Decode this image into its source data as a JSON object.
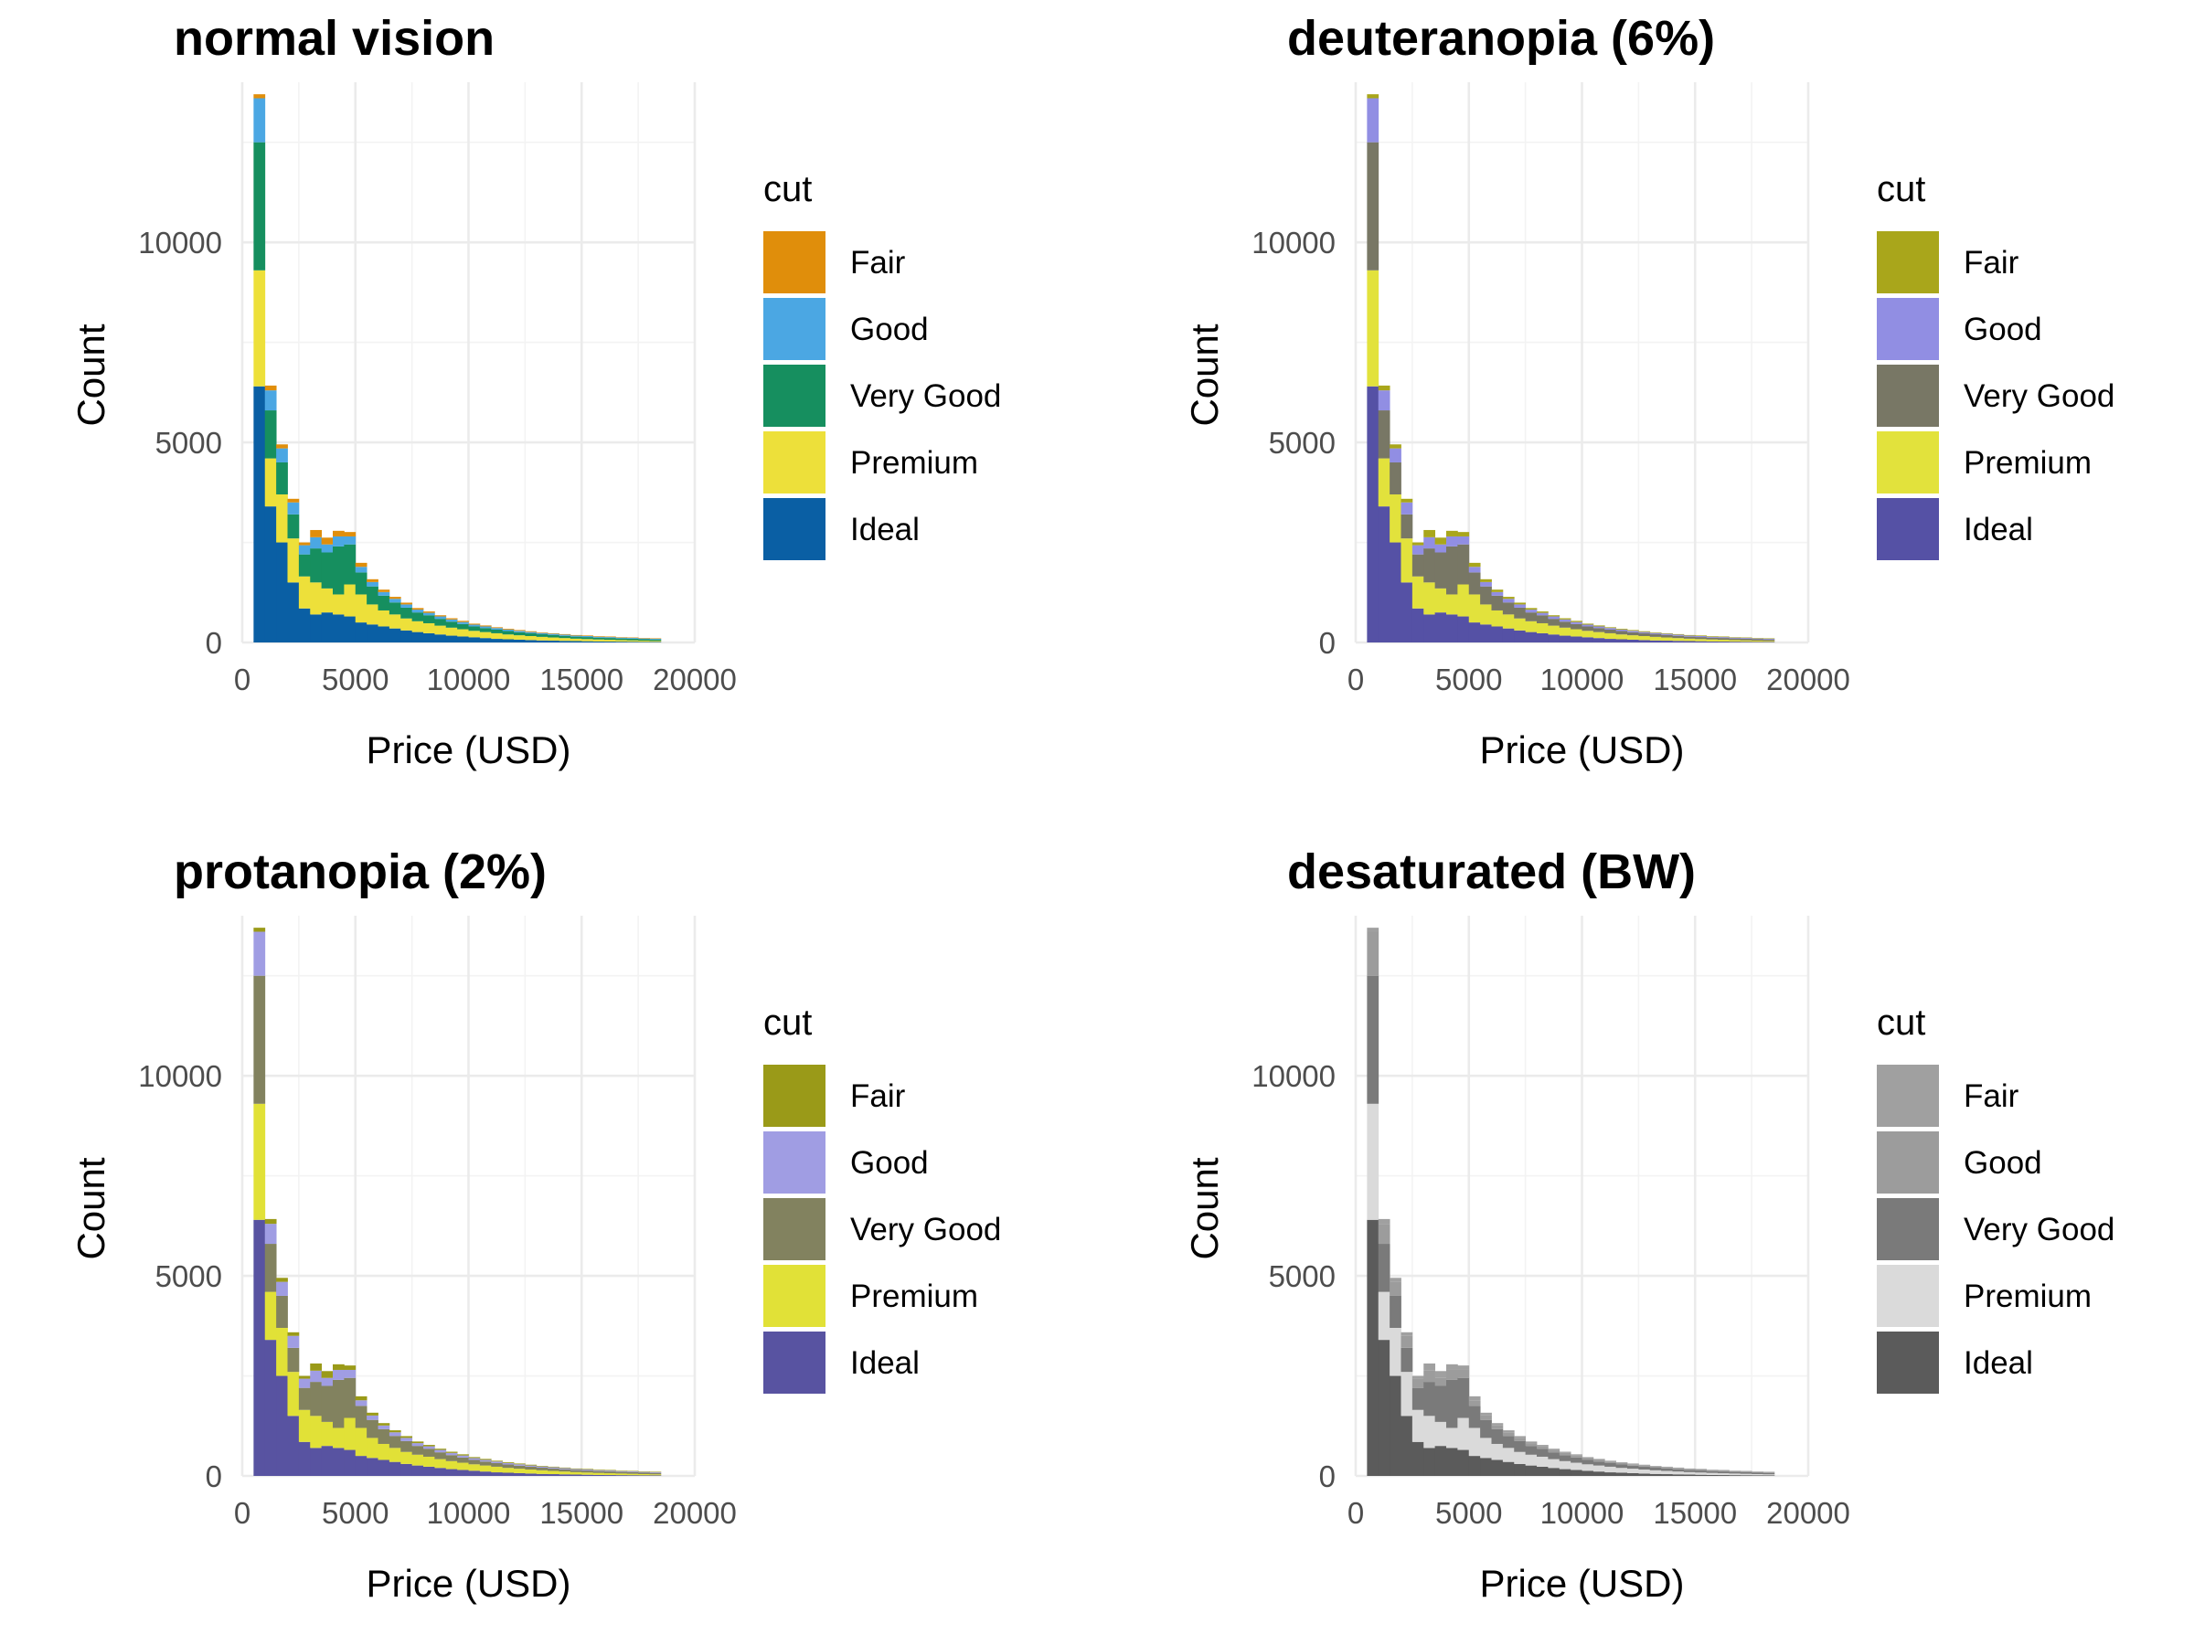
{
  "chart_data": [
    {
      "type": "bar",
      "subtype": "stacked-histogram",
      "title": "normal vision",
      "xlabel": "Price (USD)",
      "ylabel": "Count",
      "legend_title": "cut",
      "legend_position": "right",
      "grid": true,
      "xlim": [
        0,
        20000
      ],
      "ylim": [
        0,
        14000
      ],
      "x_ticks": [
        0,
        5000,
        10000,
        15000,
        20000
      ],
      "y_ticks": [
        0,
        5000,
        10000
      ],
      "binwidth": 500,
      "bins_start": [
        500,
        1000,
        1500,
        2000,
        2500,
        3000,
        3500,
        4000,
        4500,
        5000,
        5500,
        6000,
        6500,
        7000,
        7500,
        8000,
        8500,
        9000,
        9500,
        10000,
        10500,
        11000,
        11500,
        12000,
        12500,
        13000,
        13500,
        14000,
        14500,
        15000,
        15500,
        16000,
        16500,
        17000,
        17500,
        18000
      ],
      "stack_order": [
        "Ideal",
        "Premium",
        "Very Good",
        "Good",
        "Fair"
      ],
      "series": [
        {
          "name": "Fair",
          "color": "#E08E0B",
          "values": [
            100,
            120,
            100,
            90,
            70,
            180,
            170,
            140,
            110,
            100,
            70,
            60,
            50,
            45,
            40,
            35,
            30,
            30,
            30,
            25,
            25,
            20,
            20,
            20,
            20,
            15,
            15,
            15,
            15,
            15,
            15,
            15,
            12,
            12,
            12,
            12
          ]
        },
        {
          "name": "Good",
          "color": "#4BA7E3",
          "values": [
            1100,
            500,
            350,
            300,
            230,
            280,
            200,
            250,
            200,
            140,
            110,
            90,
            90,
            80,
            70,
            60,
            60,
            55,
            50,
            45,
            40,
            40,
            35,
            35,
            30,
            30,
            30,
            28,
            25,
            25,
            22,
            22,
            20,
            20,
            18,
            18
          ]
        },
        {
          "name": "Very Good",
          "color": "#168F5F",
          "values": [
            3200,
            1200,
            800,
            600,
            550,
            850,
            900,
            1200,
            1000,
            550,
            450,
            370,
            300,
            270,
            220,
            200,
            170,
            150,
            130,
            110,
            100,
            90,
            85,
            75,
            70,
            65,
            60,
            55,
            50,
            50,
            45,
            45,
            40,
            40,
            35,
            35
          ]
        },
        {
          "name": "Premium",
          "color": "#EDE03A",
          "values": [
            2900,
            1200,
            1200,
            1100,
            800,
            800,
            600,
            500,
            800,
            700,
            500,
            400,
            350,
            300,
            270,
            250,
            220,
            200,
            180,
            160,
            150,
            140,
            120,
            110,
            100,
            90,
            80,
            70,
            60,
            55,
            50,
            45,
            40,
            35,
            30,
            25
          ]
        },
        {
          "name": "Ideal",
          "color": "#0A5FA4",
          "values": [
            6400,
            3400,
            2500,
            1500,
            850,
            700,
            750,
            700,
            650,
            500,
            450,
            400,
            350,
            300,
            260,
            230,
            200,
            170,
            150,
            130,
            110,
            90,
            80,
            70,
            60,
            50,
            45,
            40,
            35,
            30,
            25,
            22,
            20,
            18,
            16,
            15
          ]
        }
      ]
    },
    {
      "type": "bar",
      "subtype": "stacked-histogram",
      "title": "deuteranopia (6%)",
      "xlabel": "Price (USD)",
      "ylabel": "Count",
      "legend_title": "cut",
      "legend_position": "right",
      "grid": true,
      "xlim": [
        0,
        20000
      ],
      "ylim": [
        0,
        14000
      ],
      "x_ticks": [
        0,
        5000,
        10000,
        15000,
        20000
      ],
      "y_ticks": [
        0,
        5000,
        10000
      ],
      "binwidth": 500,
      "bins_start": [
        500,
        1000,
        1500,
        2000,
        2500,
        3000,
        3500,
        4000,
        4500,
        5000,
        5500,
        6000,
        6500,
        7000,
        7500,
        8000,
        8500,
        9000,
        9500,
        10000,
        10500,
        11000,
        11500,
        12000,
        12500,
        13000,
        13500,
        14000,
        14500,
        15000,
        15500,
        16000,
        16500,
        17000,
        17500,
        18000
      ],
      "stack_order": [
        "Ideal",
        "Premium",
        "Very Good",
        "Good",
        "Fair"
      ],
      "series": [
        {
          "name": "Fair",
          "color": "#A9A61B",
          "values": [
            100,
            120,
            100,
            90,
            70,
            180,
            170,
            140,
            110,
            100,
            70,
            60,
            50,
            45,
            40,
            35,
            30,
            30,
            30,
            25,
            25,
            20,
            20,
            20,
            20,
            15,
            15,
            15,
            15,
            15,
            15,
            15,
            12,
            12,
            12,
            12
          ]
        },
        {
          "name": "Good",
          "color": "#918EE3",
          "values": [
            1100,
            500,
            350,
            300,
            230,
            280,
            200,
            250,
            200,
            140,
            110,
            90,
            90,
            80,
            70,
            60,
            60,
            55,
            50,
            45,
            40,
            40,
            35,
            35,
            30,
            30,
            30,
            28,
            25,
            25,
            22,
            22,
            20,
            20,
            18,
            18
          ]
        },
        {
          "name": "Very Good",
          "color": "#787765",
          "values": [
            3200,
            1200,
            800,
            600,
            550,
            850,
            900,
            1200,
            1000,
            550,
            450,
            370,
            300,
            270,
            220,
            200,
            170,
            150,
            130,
            110,
            100,
            90,
            85,
            75,
            70,
            65,
            60,
            55,
            50,
            50,
            45,
            45,
            40,
            40,
            35,
            35
          ]
        },
        {
          "name": "Premium",
          "color": "#E2E23C",
          "values": [
            2900,
            1200,
            1200,
            1100,
            800,
            800,
            600,
            500,
            800,
            700,
            500,
            400,
            350,
            300,
            270,
            250,
            220,
            200,
            180,
            160,
            150,
            140,
            120,
            110,
            100,
            90,
            80,
            70,
            60,
            55,
            50,
            45,
            40,
            35,
            30,
            25
          ]
        },
        {
          "name": "Ideal",
          "color": "#5551A5",
          "values": [
            6400,
            3400,
            2500,
            1500,
            850,
            700,
            750,
            700,
            650,
            500,
            450,
            400,
            350,
            300,
            260,
            230,
            200,
            170,
            150,
            130,
            110,
            90,
            80,
            70,
            60,
            50,
            45,
            40,
            35,
            30,
            25,
            22,
            20,
            18,
            16,
            15
          ]
        }
      ]
    },
    {
      "type": "bar",
      "subtype": "stacked-histogram",
      "title": "protanopia (2%)",
      "xlabel": "Price (USD)",
      "ylabel": "Count",
      "legend_title": "cut",
      "legend_position": "right",
      "grid": true,
      "xlim": [
        0,
        20000
      ],
      "ylim": [
        0,
        14000
      ],
      "x_ticks": [
        0,
        5000,
        10000,
        15000,
        20000
      ],
      "y_ticks": [
        0,
        5000,
        10000
      ],
      "binwidth": 500,
      "bins_start": [
        500,
        1000,
        1500,
        2000,
        2500,
        3000,
        3500,
        4000,
        4500,
        5000,
        5500,
        6000,
        6500,
        7000,
        7500,
        8000,
        8500,
        9000,
        9500,
        10000,
        10500,
        11000,
        11500,
        12000,
        12500,
        13000,
        13500,
        14000,
        14500,
        15000,
        15500,
        16000,
        16500,
        17000,
        17500,
        18000
      ],
      "stack_order": [
        "Ideal",
        "Premium",
        "Very Good",
        "Good",
        "Fair"
      ],
      "series": [
        {
          "name": "Fair",
          "color": "#9A9A18",
          "values": [
            100,
            120,
            100,
            90,
            70,
            180,
            170,
            140,
            110,
            100,
            70,
            60,
            50,
            45,
            40,
            35,
            30,
            30,
            30,
            25,
            25,
            20,
            20,
            20,
            20,
            15,
            15,
            15,
            15,
            15,
            15,
            15,
            12,
            12,
            12,
            12
          ]
        },
        {
          "name": "Good",
          "color": "#A09DE3",
          "values": [
            1100,
            500,
            350,
            300,
            230,
            280,
            200,
            250,
            200,
            140,
            110,
            90,
            90,
            80,
            70,
            60,
            60,
            55,
            50,
            45,
            40,
            40,
            35,
            35,
            30,
            30,
            30,
            28,
            25,
            25,
            22,
            22,
            20,
            20,
            18,
            18
          ]
        },
        {
          "name": "Very Good",
          "color": "#82825F",
          "values": [
            3200,
            1200,
            800,
            600,
            550,
            850,
            900,
            1200,
            1000,
            550,
            450,
            370,
            300,
            270,
            220,
            200,
            170,
            150,
            130,
            110,
            100,
            90,
            85,
            75,
            70,
            65,
            60,
            55,
            50,
            50,
            45,
            45,
            40,
            40,
            35,
            35
          ]
        },
        {
          "name": "Premium",
          "color": "#E1E137",
          "values": [
            2900,
            1200,
            1200,
            1100,
            800,
            800,
            600,
            500,
            800,
            700,
            500,
            400,
            350,
            300,
            270,
            250,
            220,
            200,
            180,
            160,
            150,
            140,
            120,
            110,
            100,
            90,
            80,
            70,
            60,
            55,
            50,
            45,
            40,
            35,
            30,
            25
          ]
        },
        {
          "name": "Ideal",
          "color": "#5853A1",
          "values": [
            6400,
            3400,
            2500,
            1500,
            850,
            700,
            750,
            700,
            650,
            500,
            450,
            400,
            350,
            300,
            260,
            230,
            200,
            170,
            150,
            130,
            110,
            90,
            80,
            70,
            60,
            50,
            45,
            40,
            35,
            30,
            25,
            22,
            20,
            18,
            16,
            15
          ]
        }
      ]
    },
    {
      "type": "bar",
      "subtype": "stacked-histogram",
      "title": "desaturated (BW)",
      "xlabel": "Price (USD)",
      "ylabel": "Count",
      "legend_title": "cut",
      "legend_position": "right",
      "grid": true,
      "xlim": [
        0,
        20000
      ],
      "ylim": [
        0,
        14000
      ],
      "x_ticks": [
        0,
        5000,
        10000,
        15000,
        20000
      ],
      "y_ticks": [
        0,
        5000,
        10000
      ],
      "binwidth": 500,
      "bins_start": [
        500,
        1000,
        1500,
        2000,
        2500,
        3000,
        3500,
        4000,
        4500,
        5000,
        5500,
        6000,
        6500,
        7000,
        7500,
        8000,
        8500,
        9000,
        9500,
        10000,
        10500,
        11000,
        11500,
        12000,
        12500,
        13000,
        13500,
        14000,
        14500,
        15000,
        15500,
        16000,
        16500,
        17000,
        17500,
        18000
      ],
      "stack_order": [
        "Ideal",
        "Premium",
        "Very Good",
        "Good",
        "Fair"
      ],
      "series": [
        {
          "name": "Fair",
          "color": "#A0A0A0",
          "values": [
            100,
            120,
            100,
            90,
            70,
            180,
            170,
            140,
            110,
            100,
            70,
            60,
            50,
            45,
            40,
            35,
            30,
            30,
            30,
            25,
            25,
            20,
            20,
            20,
            20,
            15,
            15,
            15,
            15,
            15,
            15,
            15,
            12,
            12,
            12,
            12
          ]
        },
        {
          "name": "Good",
          "color": "#9C9C9C",
          "values": [
            1100,
            500,
            350,
            300,
            230,
            280,
            200,
            250,
            200,
            140,
            110,
            90,
            90,
            80,
            70,
            60,
            60,
            55,
            50,
            45,
            40,
            40,
            35,
            35,
            30,
            30,
            30,
            28,
            25,
            25,
            22,
            22,
            20,
            20,
            18,
            18
          ]
        },
        {
          "name": "Very Good",
          "color": "#7A7A7A",
          "values": [
            3200,
            1200,
            800,
            600,
            550,
            850,
            900,
            1200,
            1000,
            550,
            450,
            370,
            300,
            270,
            220,
            200,
            170,
            150,
            130,
            110,
            100,
            90,
            85,
            75,
            70,
            65,
            60,
            55,
            50,
            50,
            45,
            45,
            40,
            40,
            35,
            35
          ]
        },
        {
          "name": "Premium",
          "color": "#DADADA",
          "values": [
            2900,
            1200,
            1200,
            1100,
            800,
            800,
            600,
            500,
            800,
            700,
            500,
            400,
            350,
            300,
            270,
            250,
            220,
            200,
            180,
            160,
            150,
            140,
            120,
            110,
            100,
            90,
            80,
            70,
            60,
            55,
            50,
            45,
            40,
            35,
            30,
            25
          ]
        },
        {
          "name": "Ideal",
          "color": "#5B5B5B",
          "values": [
            6400,
            3400,
            2500,
            1500,
            850,
            700,
            750,
            700,
            650,
            500,
            450,
            400,
            350,
            300,
            260,
            230,
            200,
            170,
            150,
            130,
            110,
            90,
            80,
            70,
            60,
            50,
            45,
            40,
            35,
            30,
            25,
            22,
            20,
            18,
            16,
            15
          ]
        }
      ]
    }
  ]
}
